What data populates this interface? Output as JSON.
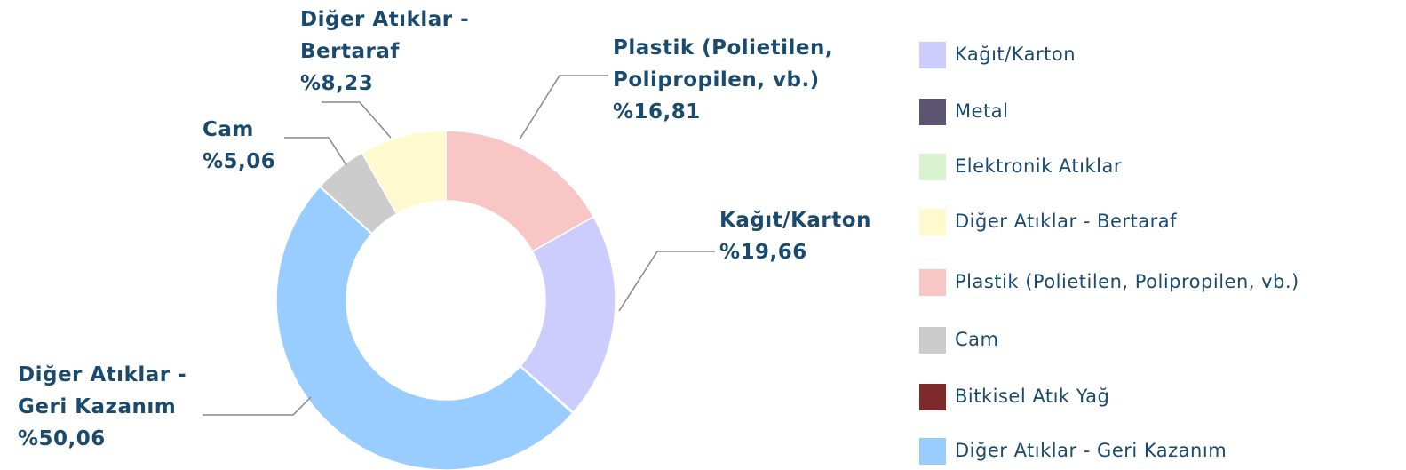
{
  "chart_data": {
    "type": "donut",
    "categories": [
      "Kağıt/Karton",
      "Metal",
      "Elektronik Atıklar",
      "Diğer Atıklar - Bertaraf",
      "Plastik (Polietilen, Polipropilen, vb.)",
      "Cam",
      "Bitkisel Atık Yağ",
      "Diğer Atıklar - Geri Kazanım"
    ],
    "values": [
      19.66,
      0.06,
      0.06,
      8.23,
      16.81,
      5.06,
      0.06,
      50.06
    ],
    "value_labels": [
      "%19,66",
      null,
      null,
      "%8,23",
      "%16,81",
      "%5,06",
      null,
      "%50,06"
    ],
    "colors": [
      "#ccccff",
      "#5c5470",
      "#d9f2d0",
      "#fffacd",
      "#f9c6c6",
      "#cccccc",
      "#7f2a2a",
      "#99ccff"
    ],
    "legend": "right"
  }
}
